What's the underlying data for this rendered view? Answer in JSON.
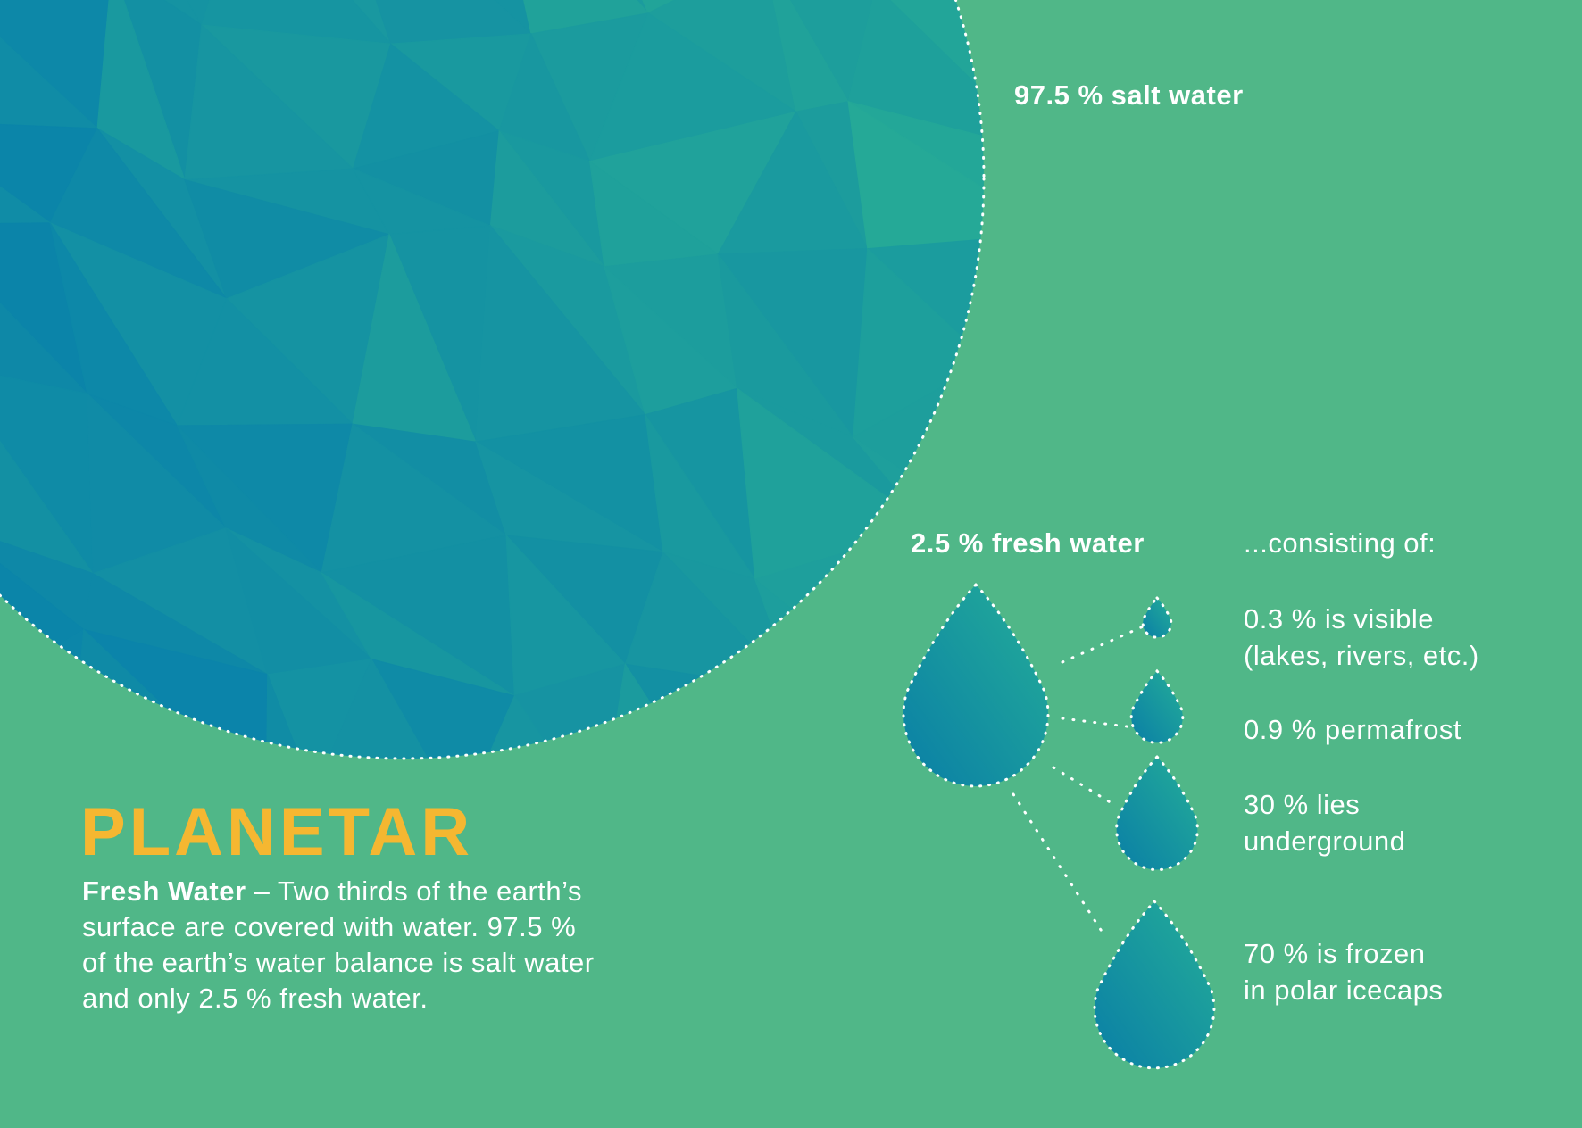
{
  "salt_water": "97.5 % salt water",
  "fresh_water": "2.5 % fresh water",
  "breakdown": {
    "intro": "...consisting of:",
    "items": [
      {
        "lines": [
          "0.3 % is visible",
          "(lakes, rivers, etc.)"
        ]
      },
      {
        "lines": [
          "0.9 % permafrost"
        ]
      },
      {
        "lines": [
          "30 % lies",
          "underground"
        ]
      },
      {
        "lines": [
          "70 % is frozen",
          "in polar icecaps"
        ]
      }
    ]
  },
  "brand": "PLANETAR",
  "description": {
    "lead": "Fresh Water",
    "lines": [
      "– Two thirds of the earth’s",
      "surface are covered with water. 97.5 %",
      "of the earth’s water balance is salt water",
      "and only 2.5 % fresh water."
    ]
  }
}
